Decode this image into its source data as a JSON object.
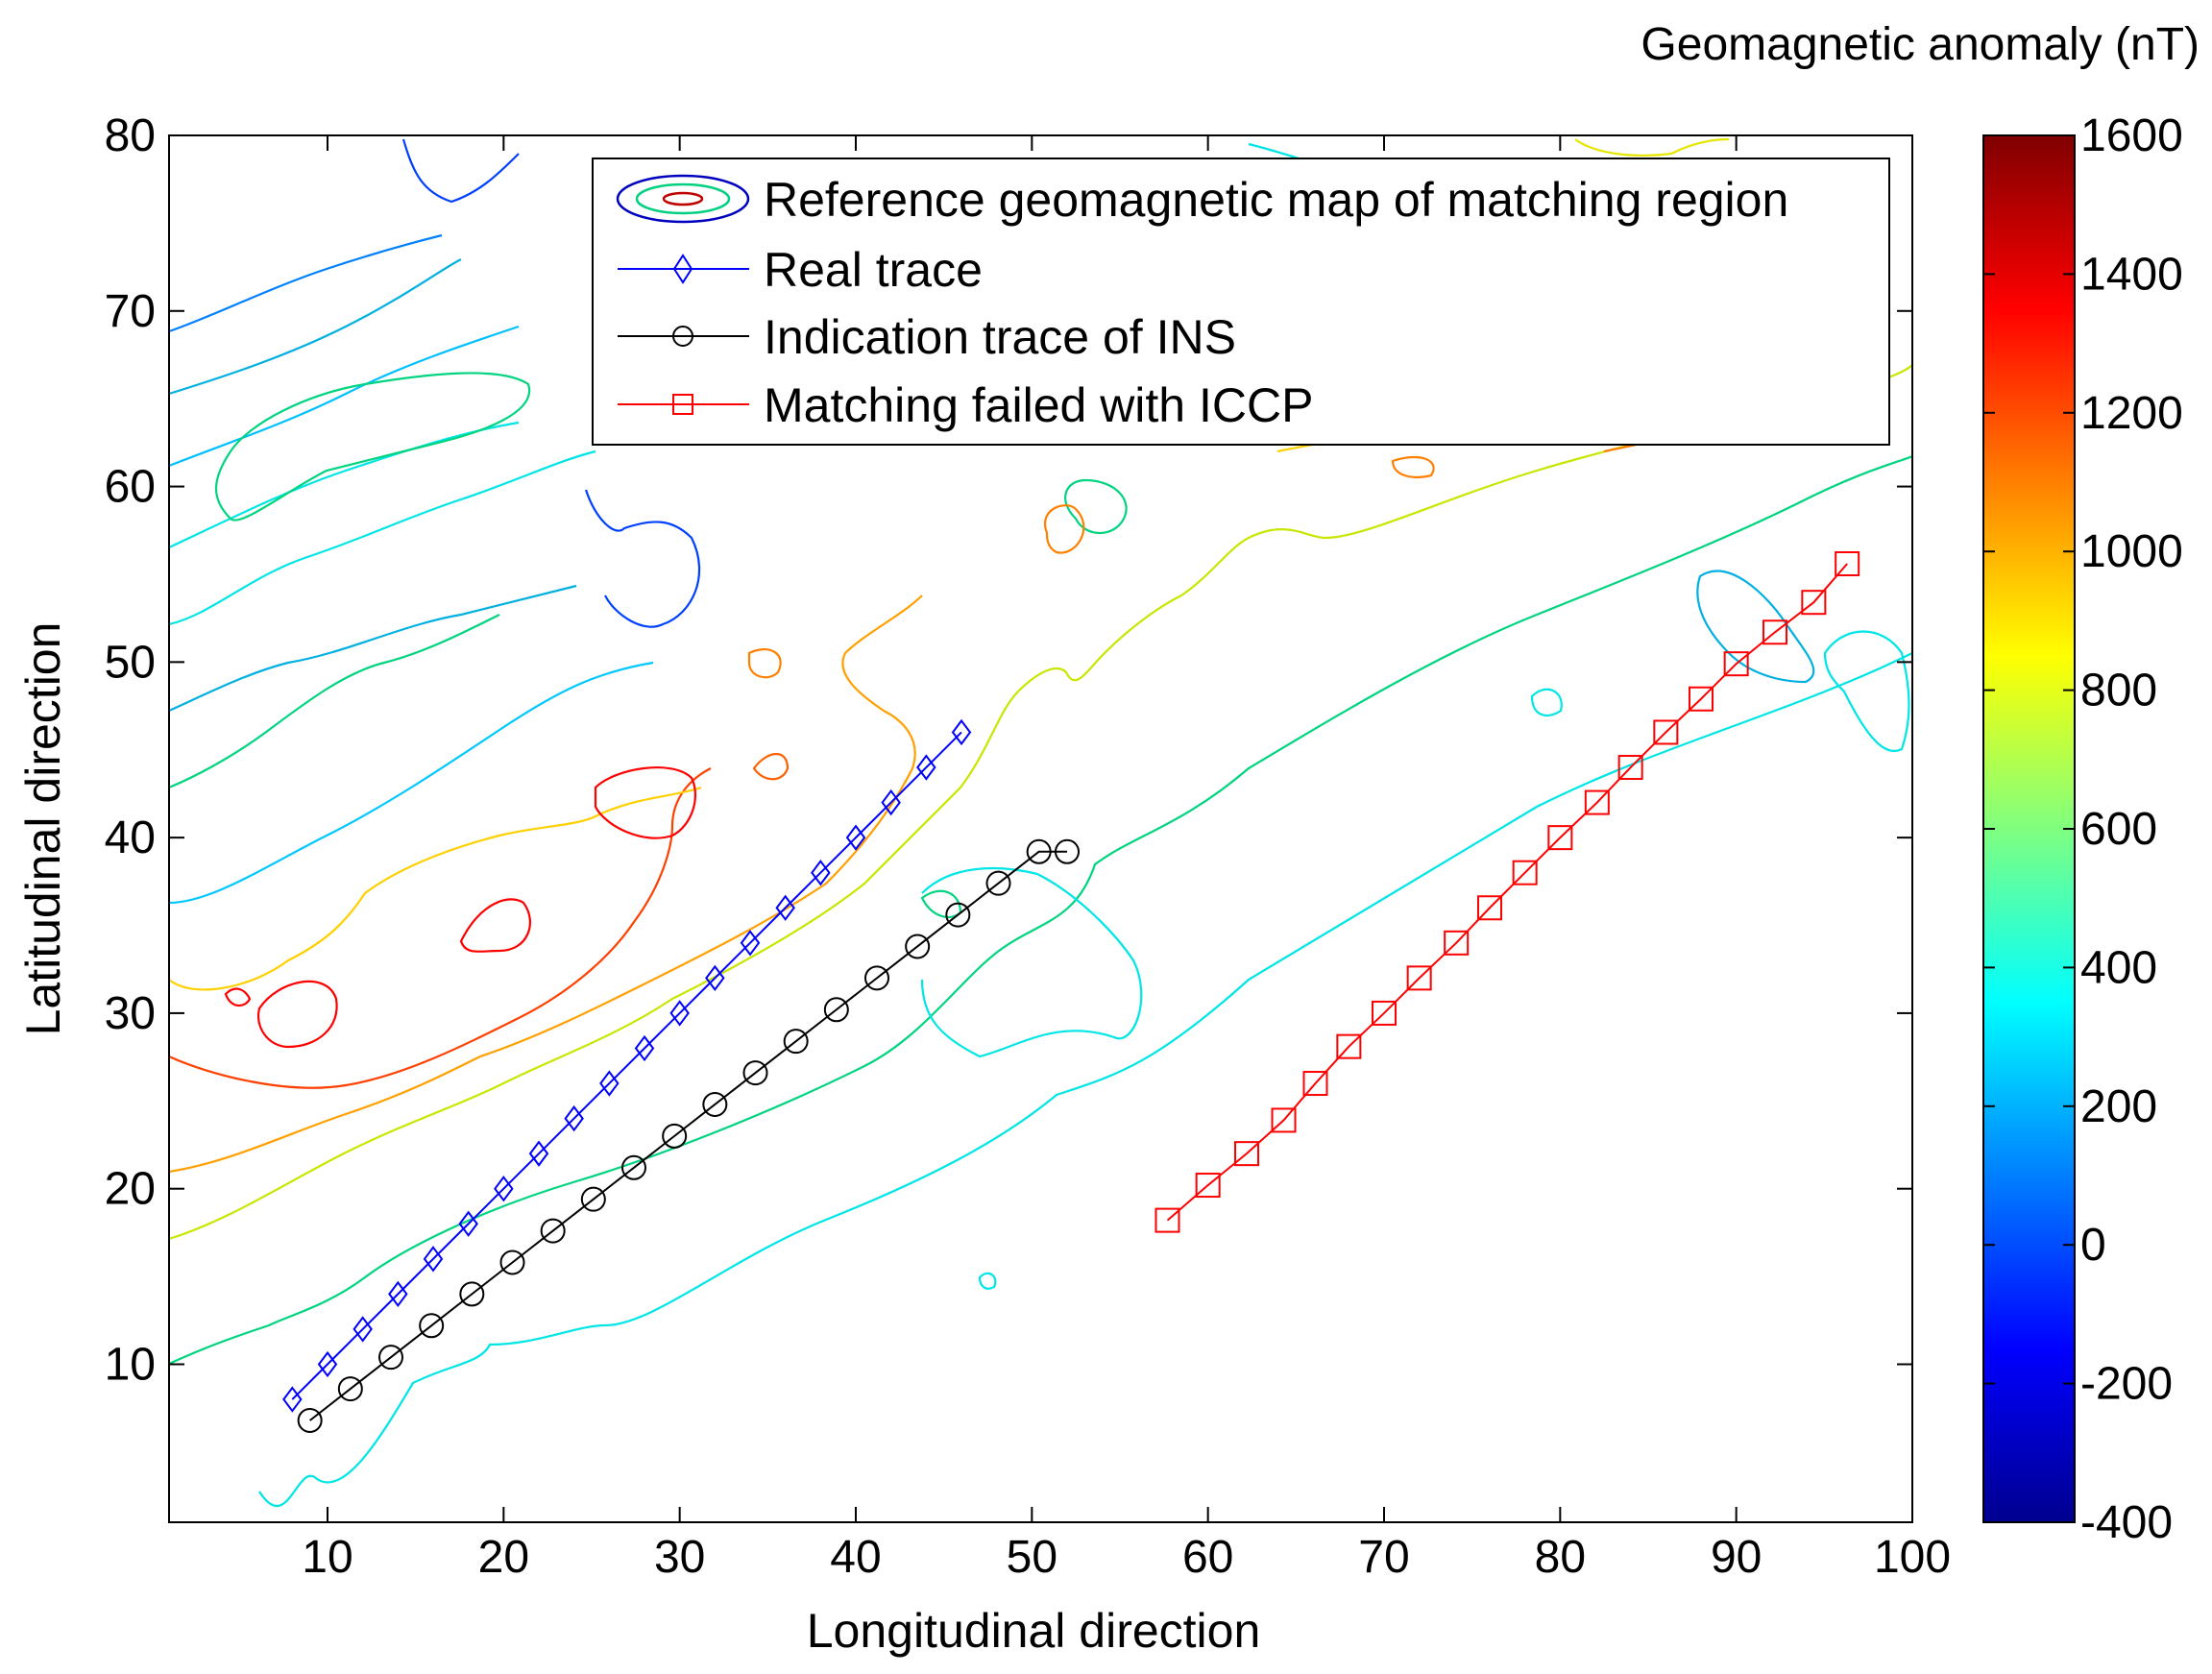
{
  "chart_data": {
    "type": "line",
    "xlabel": "Longitudinal direction",
    "ylabel": "Latitudinal direction",
    "xlim": [
      1,
      100
    ],
    "ylim": [
      1,
      80
    ],
    "xticks": [
      10,
      20,
      30,
      40,
      50,
      60,
      70,
      80,
      90,
      100
    ],
    "yticks": [
      10,
      20,
      30,
      40,
      50,
      60,
      70,
      80
    ],
    "legend": {
      "placement": "top-right",
      "entries": [
        {
          "label": "Reference geomagnetic map of matching region",
          "marker": "ellipse",
          "color": "#0000ff"
        },
        {
          "label": "Real trace",
          "marker": "diamond",
          "color": "#0000ff"
        },
        {
          "label": "Indication trace of INS",
          "marker": "circle",
          "color": "#000000"
        },
        {
          "label": "Matching failed with ICCP",
          "marker": "square",
          "color": "#ff0000"
        }
      ]
    },
    "colorbar": {
      "title": "Geomagnetic anomaly (nT)",
      "min": -400,
      "max": 1600,
      "ticks": [
        -400,
        -200,
        0,
        200,
        400,
        600,
        800,
        1000,
        1200,
        1400,
        1600
      ]
    },
    "series": [
      {
        "name": "Real trace",
        "color": "#0000ff",
        "marker": "diamond",
        "x": [
          8,
          10,
          12,
          14,
          16,
          18,
          20,
          22,
          24,
          26,
          28,
          30,
          32,
          34,
          36,
          38,
          40,
          42,
          44,
          46
        ],
        "y": [
          8,
          10,
          12,
          14,
          16,
          18,
          20,
          22,
          24,
          26,
          28,
          30,
          32,
          34,
          36,
          38,
          40,
          42,
          44,
          46
        ]
      },
      {
        "name": "Indication trace of INS",
        "color": "#000000",
        "marker": "circle",
        "x": [
          9,
          11.3,
          13.6,
          15.9,
          18.2,
          20.5,
          22.8,
          25.1,
          27.4,
          29.7,
          32,
          34.3,
          36.6,
          38.9,
          41.2,
          43.5,
          45.8,
          48.1,
          50.4,
          52
        ],
        "y": [
          6.8,
          8.6,
          10.4,
          12.2,
          14,
          15.8,
          17.6,
          19.4,
          21.2,
          23,
          24.8,
          26.6,
          28.4,
          30.2,
          32,
          33.8,
          35.6,
          37.4,
          39.2,
          39.2
        ]
      },
      {
        "name": "Matching failed with ICCP",
        "color": "#ff0000",
        "marker": "square",
        "x": [
          57.7,
          60,
          62.2,
          64.3,
          66.1,
          68,
          70,
          72,
          74.1,
          76,
          78,
          80,
          82.1,
          84,
          86,
          88,
          90,
          92.2,
          94.4,
          96.3
        ],
        "y": [
          18.2,
          20.2,
          22,
          23.9,
          26,
          28.1,
          30,
          32,
          34,
          36,
          38,
          40,
          42,
          44,
          46,
          47.9,
          49.9,
          51.7,
          53.4,
          55.6
        ]
      }
    ]
  }
}
